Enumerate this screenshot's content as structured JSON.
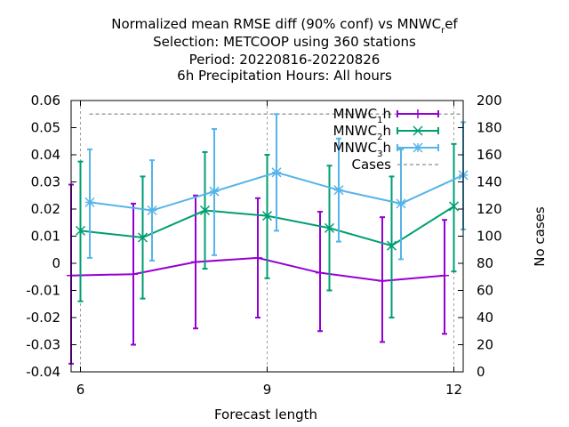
{
  "chart_data": {
    "type": "line",
    "title_lines": [
      "Normalized mean RMSE diff (90% conf) vs MNWC_ref",
      "Selection: METCOOP using   360 stations",
      "Period: 20220816-20220826",
      "6h Precipitation   Hours:  All hours"
    ],
    "xlabel": "Forecast length",
    "ylabel": "",
    "y2label": "No cases",
    "xlim": [
      5.85,
      12.15
    ],
    "ylim": [
      -0.04,
      0.06
    ],
    "y2lim": [
      0,
      200
    ],
    "xticks": [
      6,
      9,
      12
    ],
    "yticks": [
      -0.04,
      -0.03,
      -0.02,
      -0.01,
      0,
      0.01,
      0.02,
      0.03,
      0.04,
      0.05,
      0.06
    ],
    "ytick_labels": [
      "-0.04",
      "-0.03",
      "-0.02",
      "-0.01",
      "0",
      "0.01",
      "0.02",
      "0.03",
      "0.04",
      "0.05",
      "0.06"
    ],
    "y2ticks": [
      0,
      20,
      40,
      60,
      80,
      100,
      120,
      140,
      160,
      180,
      200
    ],
    "grid": "x-dashed",
    "legend_position": "top-right",
    "series": [
      {
        "name": "MNWC_1h",
        "legend_main": "MNWC",
        "legend_sub": "1",
        "legend_tail": "h",
        "color": "#9400d3",
        "marker": "plus",
        "x": [
          5.85,
          6.85,
          7.85,
          8.85,
          9.85,
          10.85,
          11.85
        ],
        "y": [
          -0.0045,
          -0.004,
          0.0005,
          0.002,
          -0.0035,
          -0.0065,
          -0.0045
        ],
        "err_low": [
          -0.037,
          -0.03,
          -0.024,
          -0.02,
          -0.025,
          -0.029,
          -0.026
        ],
        "err_high": [
          0.029,
          0.022,
          0.025,
          0.024,
          0.019,
          0.017,
          0.016
        ]
      },
      {
        "name": "MNWC_2h",
        "legend_main": "MNWC",
        "legend_sub": "2",
        "legend_tail": "h",
        "color": "#009e73",
        "marker": "x",
        "x": [
          6.0,
          7.0,
          8.0,
          9.0,
          10.0,
          11.0,
          12.0
        ],
        "y": [
          0.012,
          0.0095,
          0.0195,
          0.0175,
          0.013,
          0.0065,
          0.021
        ],
        "err_low": [
          -0.014,
          -0.013,
          -0.002,
          -0.0055,
          -0.01,
          -0.02,
          -0.003
        ],
        "err_high": [
          0.0375,
          0.032,
          0.041,
          0.04,
          0.036,
          0.032,
          0.044
        ]
      },
      {
        "name": "MNWC_3h",
        "legend_main": "MNWC",
        "legend_sub": "3",
        "legend_tail": "h",
        "color": "#56b4e9",
        "marker": "star",
        "x": [
          6.15,
          7.15,
          8.15,
          9.15,
          10.15,
          11.15,
          12.15
        ],
        "y": [
          0.0225,
          0.0195,
          0.0265,
          0.0335,
          0.027,
          0.022,
          0.0325
        ],
        "err_low": [
          0.002,
          0.001,
          0.003,
          0.012,
          0.008,
          0.0015,
          0.0125
        ],
        "err_high": [
          0.042,
          0.038,
          0.0495,
          0.055,
          0.046,
          0.042,
          0.052
        ]
      },
      {
        "name": "Cases",
        "legend_main": "Cases",
        "color": "#a0a0a0",
        "style": "dashed",
        "axis": "y2",
        "x": [
          6,
          12
        ],
        "y": [
          190,
          190
        ]
      }
    ]
  }
}
